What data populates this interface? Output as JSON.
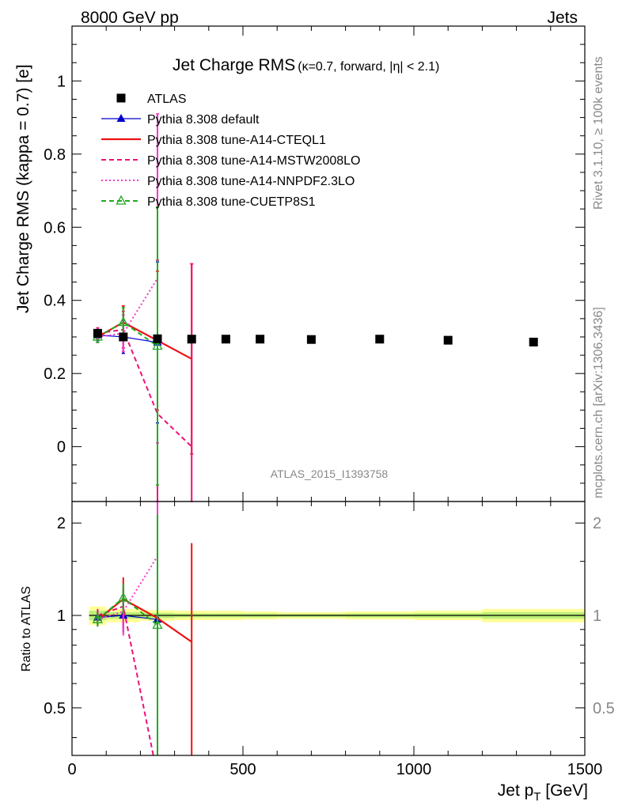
{
  "header": {
    "left": "8000 GeV pp",
    "right": "Jets"
  },
  "side_text": {
    "version": "Rivet 3.1.10, ≥ 100k events",
    "source": "mcplots.cern.ch [arXiv:1306.3436]"
  },
  "analysis_id": "ATLAS_2015_I1393758",
  "chart_data": [
    {
      "type": "line",
      "title": "Jet Charge RMS",
      "title_sub": "(κ=0.7, forward, |η| < 2.1)",
      "ylabel": "Jet Charge RMS (kappa = 0.7) [e]",
      "xlabel_main": "Jet p",
      "xlabel_sub": "T",
      "xlabel_unit": " [GeV]",
      "xlim": [
        0,
        1500
      ],
      "ylim": [
        -0.15,
        1.15
      ],
      "x_ticks": [
        0,
        500,
        1000,
        1500
      ],
      "y_ticks": [
        0,
        0.2,
        0.4,
        0.6,
        0.8,
        1
      ],
      "y_tick_labels": [
        "0",
        "0.2",
        "0.4",
        "0.6",
        "0.8",
        "1"
      ],
      "legend": {
        "position": "top-left"
      },
      "data": {
        "name": "ATLAS",
        "x": [
          75,
          150,
          250,
          350,
          450,
          550,
          700,
          900,
          1100,
          1350
        ],
        "y": [
          0.31,
          0.3,
          0.295,
          0.294,
          0.294,
          0.294,
          0.293,
          0.294,
          0.291,
          0.286
        ],
        "err": [
          0.01,
          0.008,
          0.006,
          0.005,
          0.005,
          0.005,
          0.004,
          0.005,
          0.006,
          0.008
        ]
      },
      "series": [
        {
          "name": "Pythia 8.308 default",
          "color": "#0000cc",
          "style": "solid",
          "marker": "triangle-filled",
          "x": [
            75,
            150,
            250
          ],
          "y": [
            0.305,
            0.3,
            0.285
          ],
          "err": [
            0.015,
            0.045,
            0.22
          ]
        },
        {
          "name": "Pythia 8.308 tune-A14-CTEQL1",
          "color": "#ee1111",
          "style": "solid-thick",
          "marker": "none",
          "x": [
            75,
            150,
            250,
            350
          ],
          "y": [
            0.3,
            0.34,
            0.29,
            0.24
          ],
          "err": [
            0.015,
            0.045,
            0.19,
            0.26
          ]
        },
        {
          "name": "Pythia 8.308 tune-A14-MSTW2008LO",
          "color": "#ee1177",
          "style": "dashed",
          "marker": "none",
          "x": [
            75,
            150,
            250,
            350
          ],
          "y": [
            0.31,
            0.32,
            0.09,
            0.0
          ],
          "err": [
            0.015,
            0.05,
            0.42,
            0.5
          ]
        },
        {
          "name": "Pythia 8.308 tune-A14-NNPDF2.3LO",
          "color": "#ff33cc",
          "style": "dotted",
          "marker": "none",
          "x": [
            75,
            150,
            250
          ],
          "y": [
            0.3,
            0.31,
            0.46
          ],
          "err": [
            0.015,
            0.05,
            0.45
          ]
        },
        {
          "name": "Pythia 8.308 tune-CUETP8S1",
          "color": "#22aa22",
          "style": "dashed",
          "marker": "triangle-open",
          "x": [
            75,
            150,
            250
          ],
          "y": [
            0.3,
            0.34,
            0.275
          ],
          "err": [
            0.015,
            0.04,
            0.38
          ]
        }
      ]
    },
    {
      "type": "line",
      "title": "",
      "ylabel": "Ratio to ATLAS",
      "xlim": [
        0,
        1500
      ],
      "ylim": [
        0.35,
        2.35
      ],
      "y_ticks": [
        0.5,
        1,
        2
      ],
      "y_tick_labels": [
        "0.5",
        "1",
        "2"
      ],
      "band_bins": [
        {
          "x0": 50,
          "x1": 100,
          "inner": 0.035,
          "outer": 0.07
        },
        {
          "x0": 100,
          "x1": 200,
          "inner": 0.025,
          "outer": 0.05
        },
        {
          "x0": 200,
          "x1": 300,
          "inner": 0.02,
          "outer": 0.04
        },
        {
          "x0": 300,
          "x1": 400,
          "inner": 0.015,
          "outer": 0.035
        },
        {
          "x0": 400,
          "x1": 500,
          "inner": 0.015,
          "outer": 0.035
        },
        {
          "x0": 500,
          "x1": 600,
          "inner": 0.015,
          "outer": 0.03
        },
        {
          "x0": 600,
          "x1": 800,
          "inner": 0.012,
          "outer": 0.025
        },
        {
          "x0": 800,
          "x1": 1000,
          "inner": 0.015,
          "outer": 0.03
        },
        {
          "x0": 1000,
          "x1": 1200,
          "inner": 0.017,
          "outer": 0.035
        },
        {
          "x0": 1200,
          "x1": 1500,
          "inner": 0.025,
          "outer": 0.05
        }
      ],
      "series": [
        {
          "name": "Pythia 8.308 default",
          "color": "#0000cc",
          "style": "solid",
          "marker": "triangle-filled",
          "x": [
            75,
            150,
            250
          ],
          "y": [
            0.985,
            1.0,
            0.97
          ],
          "err": [
            0.05,
            0.12,
            0.72
          ]
        },
        {
          "name": "Pythia 8.308 tune-A14-CTEQL1",
          "color": "#ee1111",
          "style": "solid-thick",
          "marker": "none",
          "x": [
            75,
            150,
            250,
            350
          ],
          "y": [
            0.97,
            1.13,
            0.98,
            0.82
          ],
          "err": [
            0.05,
            0.2,
            0.72,
            0.9
          ]
        },
        {
          "name": "Pythia 8.308 tune-A14-MSTW2008LO",
          "color": "#ee1177",
          "style": "dashed",
          "marker": "none",
          "x": [
            75,
            150,
            250
          ],
          "y": [
            1.0,
            1.07,
            0.3
          ],
          "err": [
            0.05,
            0.17,
            1.4
          ]
        },
        {
          "name": "Pythia 8.308 tune-A14-NNPDF2.3LO",
          "color": "#ff33cc",
          "style": "dotted",
          "marker": "none",
          "x": [
            75,
            150,
            250
          ],
          "y": [
            0.97,
            1.03,
            1.56
          ],
          "err": [
            0.05,
            0.17,
            1.5
          ]
        },
        {
          "name": "Pythia 8.308 tune-CUETP8S1",
          "color": "#22aa22",
          "style": "dashed",
          "marker": "triangle-open",
          "x": [
            75,
            150,
            250
          ],
          "y": [
            0.97,
            1.14,
            0.93
          ],
          "err": [
            0.05,
            0.13,
            1.2
          ]
        }
      ]
    }
  ]
}
